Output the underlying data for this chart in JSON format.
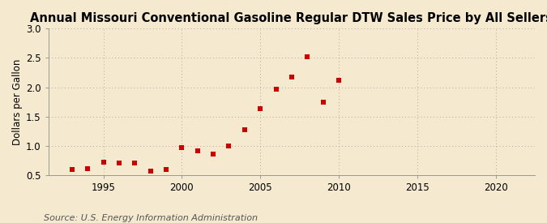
{
  "title": "Annual Missouri Conventional Gasoline Regular DTW Sales Price by All Sellers",
  "ylabel": "Dollars per Gallon",
  "source_text": "Source: U.S. Energy Information Administration",
  "years": [
    1993,
    1994,
    1995,
    1996,
    1997,
    1998,
    1999,
    2000,
    2001,
    2002,
    2003,
    2004,
    2005,
    2006,
    2007,
    2008,
    2009,
    2010
  ],
  "values": [
    0.6,
    0.61,
    0.72,
    0.71,
    0.71,
    0.57,
    0.6,
    0.97,
    0.91,
    0.86,
    1.0,
    1.28,
    1.64,
    1.97,
    2.18,
    2.52,
    1.75,
    2.12
  ],
  "xlim": [
    1991.5,
    2022.5
  ],
  "ylim": [
    0.5,
    3.0
  ],
  "xticks": [
    1995,
    2000,
    2005,
    2010,
    2015,
    2020
  ],
  "yticks": [
    0.5,
    1.0,
    1.5,
    2.0,
    2.5,
    3.0
  ],
  "marker_color": "#cc0000",
  "background_color": "#f5e9d0",
  "plot_bg_color": "#f5e9d0",
  "grid_color": "#aaaaaa",
  "spine_color": "#999999",
  "title_fontsize": 10.5,
  "title_fontweight": "bold",
  "label_fontsize": 8.5,
  "tick_fontsize": 8.5,
  "source_fontsize": 8
}
